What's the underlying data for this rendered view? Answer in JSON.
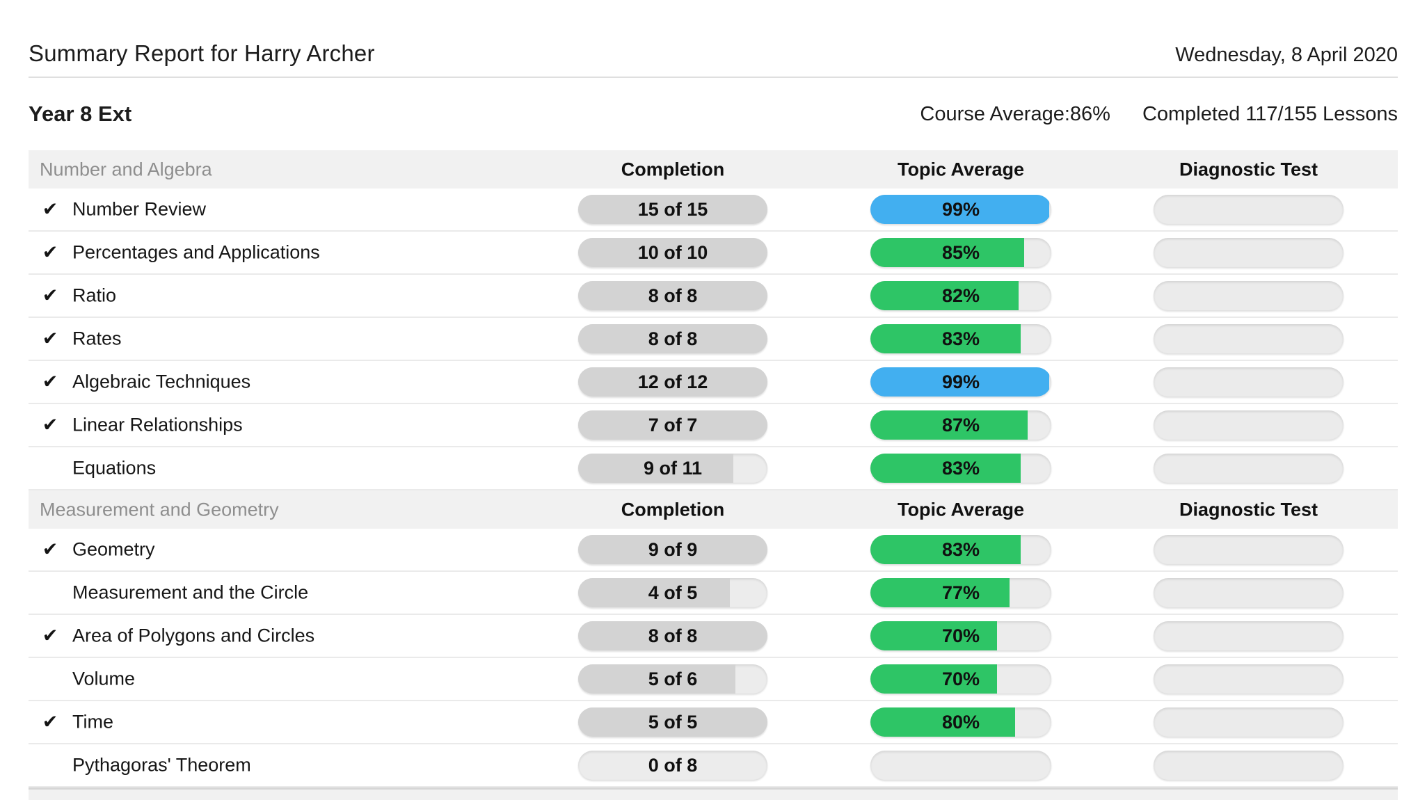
{
  "header": {
    "title": "Summary Report for Harry Archer",
    "date": "Wednesday, 8 April 2020"
  },
  "course": {
    "name": "Year 8 Ext",
    "average_text": "Course Average:86%",
    "completed_text": "Completed 117/155 Lessons"
  },
  "columns": {
    "completion": "Completion",
    "topic_average": "Topic Average",
    "diagnostic_test": "Diagnostic Test"
  },
  "check_glyph": "✔",
  "colors": {
    "green": "#2ec566",
    "blue": "#42aff0",
    "completion_fill": "#d3d3d3",
    "pill_background": "#ececec",
    "section_background": "#f1f1f1",
    "section_text": "#8e8e8e"
  },
  "sections": [
    {
      "name": "Number and Algebra",
      "topics": [
        {
          "label": "Number Review",
          "checked": true,
          "completion": "15 of 15",
          "completion_pct": 100,
          "average": "99%",
          "average_pct": 99,
          "average_style": "blue"
        },
        {
          "label": "Percentages and Applications",
          "checked": true,
          "completion": "10 of 10",
          "completion_pct": 100,
          "average": "85%",
          "average_pct": 85,
          "average_style": "green"
        },
        {
          "label": "Ratio",
          "checked": true,
          "completion": "8 of 8",
          "completion_pct": 100,
          "average": "82%",
          "average_pct": 82,
          "average_style": "green"
        },
        {
          "label": "Rates",
          "checked": true,
          "completion": "8 of 8",
          "completion_pct": 100,
          "average": "83%",
          "average_pct": 83,
          "average_style": "green"
        },
        {
          "label": "Algebraic Techniques",
          "checked": true,
          "completion": "12 of 12",
          "completion_pct": 100,
          "average": "99%",
          "average_pct": 99,
          "average_style": "blue"
        },
        {
          "label": "Linear Relationships",
          "checked": true,
          "completion": "7 of 7",
          "completion_pct": 100,
          "average": "87%",
          "average_pct": 87,
          "average_style": "green"
        },
        {
          "label": "Equations",
          "checked": false,
          "completion": "9 of 11",
          "completion_pct": 82,
          "average": "83%",
          "average_pct": 83,
          "average_style": "green"
        }
      ]
    },
    {
      "name": "Measurement and Geometry",
      "topics": [
        {
          "label": "Geometry",
          "checked": true,
          "completion": "9 of 9",
          "completion_pct": 100,
          "average": "83%",
          "average_pct": 83,
          "average_style": "green"
        },
        {
          "label": "Measurement and the Circle",
          "checked": false,
          "completion": "4 of 5",
          "completion_pct": 80,
          "average": "77%",
          "average_pct": 77,
          "average_style": "green"
        },
        {
          "label": "Area of Polygons and Circles",
          "checked": true,
          "completion": "8 of 8",
          "completion_pct": 100,
          "average": "70%",
          "average_pct": 70,
          "average_style": "green"
        },
        {
          "label": "Volume",
          "checked": false,
          "completion": "5 of 6",
          "completion_pct": 83,
          "average": "70%",
          "average_pct": 70,
          "average_style": "green"
        },
        {
          "label": "Time",
          "checked": true,
          "completion": "5 of 5",
          "completion_pct": 100,
          "average": "80%",
          "average_pct": 80,
          "average_style": "green"
        },
        {
          "label": "Pythagoras' Theorem",
          "checked": false,
          "completion": "0 of 8",
          "completion_pct": 0,
          "average": "",
          "average_pct": 0,
          "average_style": "none"
        }
      ]
    }
  ]
}
